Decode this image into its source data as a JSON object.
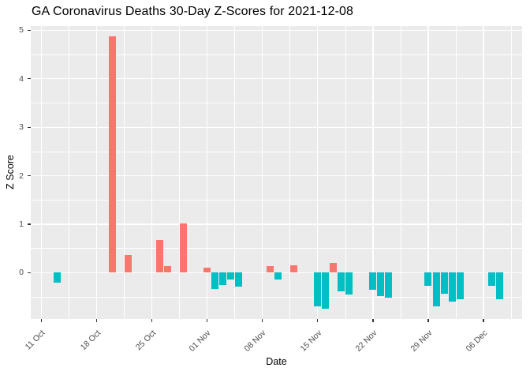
{
  "chart_data": {
    "type": "bar",
    "title": "GA Coronavirus Deaths 30-Day Z-Scores for 2021-12-08",
    "xlabel": "Date",
    "ylabel": "Z Score",
    "x": [
      "2021-10-13",
      "2021-10-20",
      "2021-10-22",
      "2021-10-26",
      "2021-10-27",
      "2021-10-29",
      "2021-11-01",
      "2021-11-02",
      "2021-11-03",
      "2021-11-04",
      "2021-11-05",
      "2021-11-09",
      "2021-11-10",
      "2021-11-12",
      "2021-11-15",
      "2021-11-16",
      "2021-11-17",
      "2021-11-18",
      "2021-11-19",
      "2021-11-22",
      "2021-11-23",
      "2021-11-24",
      "2021-11-29",
      "2021-11-30",
      "2021-12-01",
      "2021-12-02",
      "2021-12-03",
      "2021-12-07",
      "2021-12-08"
    ],
    "values": [
      -0.2,
      4.87,
      0.37,
      0.68,
      0.13,
      1.01,
      0.1,
      -0.33,
      -0.26,
      -0.14,
      -0.28,
      0.13,
      -0.14,
      0.16,
      -0.69,
      -0.74,
      0.2,
      -0.38,
      -0.45,
      -0.35,
      -0.49,
      -0.52,
      -0.27,
      -0.69,
      -0.44,
      -0.59,
      -0.55,
      -0.27,
      -0.54
    ],
    "x_tick_dates": [
      "2021-10-11",
      "2021-10-18",
      "2021-10-25",
      "2021-11-01",
      "2021-11-08",
      "2021-11-15",
      "2021-11-22",
      "2021-11-29",
      "2021-12-06"
    ],
    "x_tick_labels": [
      "11 Oct",
      "18 Oct",
      "25 Oct",
      "01 Nov",
      "08 Nov",
      "15 Nov",
      "22 Nov",
      "29 Nov",
      "06 Dec"
    ],
    "y_ticks": [
      0,
      1,
      2,
      3,
      4,
      5
    ],
    "ylim": [
      -0.95,
      5.1
    ],
    "grid": "white major and minor gridlines on gray panel",
    "legend": "none",
    "colors": {
      "positive_bar": "#F8766D",
      "negative_bar": "#00BFC4",
      "panel_background": "#EBEBEB",
      "outer_background": "#FFFFFF",
      "axis_text": "#4D4D4D",
      "tick_marks": "#333333",
      "title_text": "#000000"
    }
  }
}
